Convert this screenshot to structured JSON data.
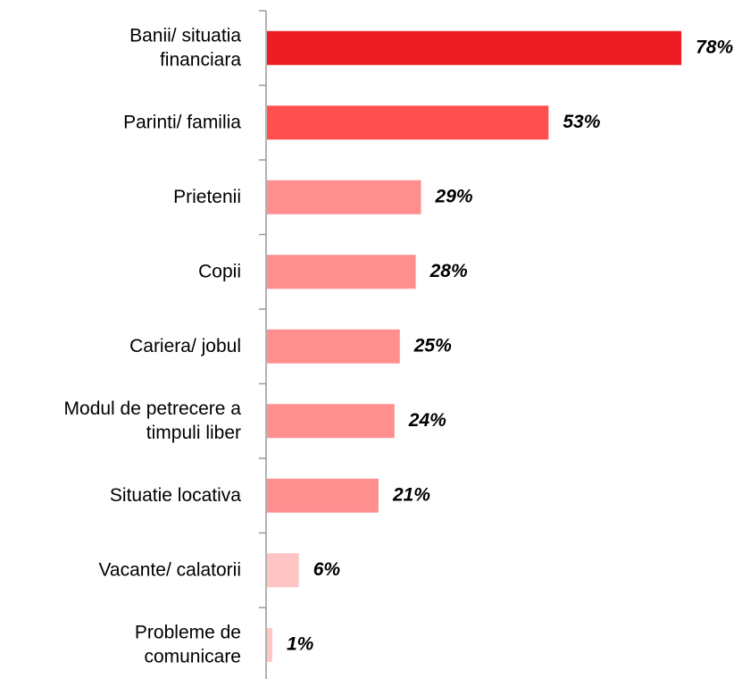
{
  "chart_data": {
    "type": "bar",
    "orientation": "horizontal",
    "categories": [
      "Banii/ situatia\nfinanciara",
      "Parinti/ familia",
      "Prietenii",
      "Copii",
      "Cariera/ jobul",
      "Modul de petrecere a\ntimpuli liber",
      "Situatie locativa",
      "Vacante/ calatorii",
      "Probleme de\ncomunicare"
    ],
    "values": [
      78,
      53,
      29,
      28,
      25,
      24,
      21,
      6,
      1
    ],
    "value_labels": [
      "78%",
      "53%",
      "29%",
      "28%",
      "25%",
      "24%",
      "21%",
      "6%",
      "1%"
    ],
    "colors": [
      "#ed1c24",
      "#ff5050",
      "#ff8f8f",
      "#ff8f8f",
      "#ff8f8f",
      "#ff8f8f",
      "#ff8f8f",
      "#ffc5c5",
      "#ffc5c5"
    ]
  }
}
